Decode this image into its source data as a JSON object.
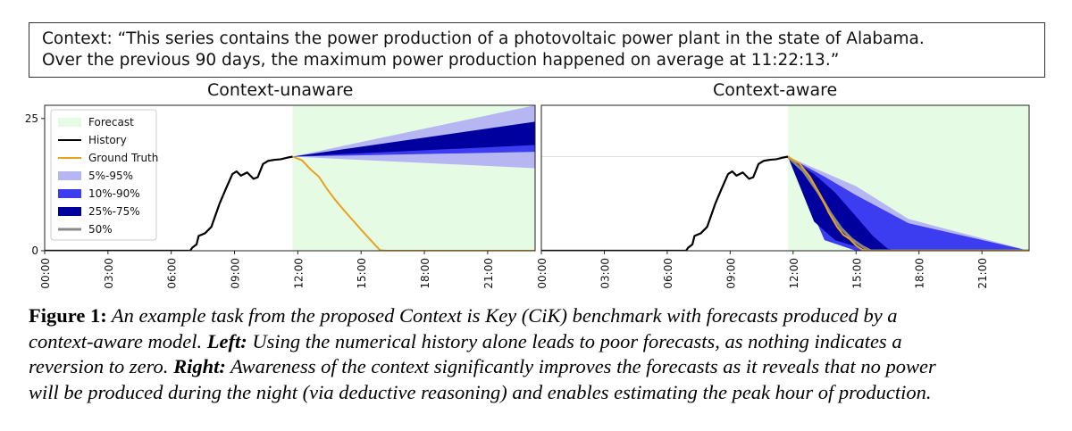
{
  "context": {
    "line1": "Context: “This series contains the power production of a photovoltaic power plant in the state of Alabama.",
    "line2": "Over the previous 90 days, the maximum power production happened on average at 11:22:13.”"
  },
  "chart_data": [
    {
      "type": "area",
      "title": "Context-unaware",
      "x_ticks": [
        "00:00",
        "03:00",
        "06:00",
        "09:00",
        "12:00",
        "15:00",
        "18:00",
        "21:00"
      ],
      "y_ticks": [
        0,
        25
      ],
      "ylim": [
        0,
        27.5
      ],
      "legend_position": "top-left",
      "legend": [
        "Forecast",
        "History",
        "Ground Truth",
        "5%-95%",
        "10%-90%",
        "25%-75%",
        "50%"
      ],
      "forecast_start_hour": 11.75,
      "x_end_hour": 23.25,
      "history": [
        [
          0,
          0
        ],
        [
          6.9,
          0
        ],
        [
          7.0,
          0.6
        ],
        [
          7.2,
          1.2
        ],
        [
          7.3,
          2.8
        ],
        [
          7.6,
          3.3
        ],
        [
          7.9,
          4.5
        ],
        [
          8.3,
          9.0
        ],
        [
          8.6,
          11.8
        ],
        [
          8.9,
          14.5
        ],
        [
          9.1,
          15.0
        ],
        [
          9.3,
          14.2
        ],
        [
          9.6,
          14.8
        ],
        [
          9.9,
          13.6
        ],
        [
          10.1,
          13.9
        ],
        [
          10.35,
          16.4
        ],
        [
          10.6,
          17.0
        ],
        [
          10.9,
          17.2
        ],
        [
          11.2,
          17.3
        ],
        [
          11.5,
          17.6
        ],
        [
          11.75,
          17.8
        ]
      ],
      "ground_truth": [
        [
          11.75,
          17.8
        ],
        [
          12.2,
          17.1
        ],
        [
          12.6,
          15.4
        ],
        [
          13.0,
          14.0
        ],
        [
          13.4,
          11.6
        ],
        [
          13.8,
          9.5
        ],
        [
          14.2,
          7.6
        ],
        [
          14.6,
          5.8
        ],
        [
          15.0,
          4.0
        ],
        [
          15.5,
          1.8
        ],
        [
          15.9,
          0.1
        ],
        [
          16.2,
          0
        ],
        [
          23.25,
          0
        ]
      ],
      "forecast_bands": {
        "end_hour": 23.25,
        "5-95": [
          15.6,
          27.5
        ],
        "10-90": [
          18.7,
          23.8
        ],
        "25-75": [
          20.0,
          24.4
        ]
      }
    },
    {
      "type": "area",
      "title": "Context-aware",
      "x_ticks": [
        "00:00",
        "03:00",
        "06:00",
        "09:00",
        "12:00",
        "15:00",
        "18:00",
        "21:00"
      ],
      "ylim": [
        0,
        27.5
      ],
      "forecast_start_hour": 11.75,
      "x_end_hour": 23.25,
      "history": [
        [
          0,
          0
        ],
        [
          6.9,
          0
        ],
        [
          7.0,
          0.6
        ],
        [
          7.2,
          1.2
        ],
        [
          7.3,
          2.8
        ],
        [
          7.6,
          3.3
        ],
        [
          7.9,
          4.5
        ],
        [
          8.3,
          9.0
        ],
        [
          8.6,
          11.8
        ],
        [
          8.9,
          14.5
        ],
        [
          9.1,
          15.0
        ],
        [
          9.3,
          14.2
        ],
        [
          9.6,
          14.8
        ],
        [
          9.9,
          13.6
        ],
        [
          10.1,
          13.9
        ],
        [
          10.35,
          16.4
        ],
        [
          10.6,
          17.0
        ],
        [
          10.9,
          17.2
        ],
        [
          11.2,
          17.3
        ],
        [
          11.5,
          17.6
        ],
        [
          11.75,
          17.8
        ]
      ],
      "ground_truth": [
        [
          11.75,
          17.8
        ],
        [
          12.3,
          16.5
        ],
        [
          12.8,
          14.0
        ],
        [
          13.3,
          10.5
        ],
        [
          13.7,
          7.2
        ],
        [
          14.1,
          4.5
        ],
        [
          14.4,
          3.0
        ],
        [
          14.7,
          2.2
        ],
        [
          15.0,
          1.0
        ],
        [
          15.3,
          0.2
        ],
        [
          15.6,
          0
        ],
        [
          23.25,
          0
        ]
      ],
      "forecast_bands": {
        "5-95": [
          [
            11.75,
            17.8,
            17.8
          ],
          [
            15.0,
            0,
            12.2
          ],
          [
            17.5,
            0,
            6.0
          ],
          [
            23.25,
            0,
            0
          ]
        ],
        "10-90": [
          [
            11.75,
            17.8,
            17.8
          ],
          [
            13.5,
            2.0,
            14.0
          ],
          [
            15.0,
            0,
            10.5
          ],
          [
            17.5,
            0,
            5.2
          ],
          [
            23.25,
            0,
            0
          ]
        ],
        "25-75": [
          [
            11.75,
            17.8,
            17.8
          ],
          [
            13.0,
            5.5,
            14.5
          ],
          [
            14.0,
            2.0,
            11.0
          ],
          [
            15.0,
            0.8,
            6.5
          ],
          [
            15.8,
            0,
            2.8
          ],
          [
            16.5,
            0,
            0.4
          ],
          [
            17.0,
            0,
            0
          ]
        ],
        "50": [
          [
            11.75,
            17.8
          ],
          [
            12.5,
            15.0
          ],
          [
            13.2,
            11.0
          ],
          [
            13.8,
            7.0
          ],
          [
            14.3,
            4.2
          ],
          [
            14.8,
            2.2
          ],
          [
            15.3,
            0.8
          ],
          [
            15.7,
            0
          ],
          [
            23.25,
            0
          ]
        ]
      }
    }
  ],
  "caption": {
    "figure_label": "Figure 1:",
    "line1_rest": " An example task from the proposed Context is Key (CiK) benchmark with forecasts produced by a",
    "line2_a": "context-aware model. ",
    "left_label": "Left:",
    "line2_b": " Using the numerical history alone leads to poor forecasts, as nothing indicates a",
    "line3_a": "reversion to zero. ",
    "right_label": "Right:",
    "line3_b": " Awareness of the context significantly improves the forecasts as it reveals that no power",
    "line4": "will be produced during the night (via deductive reasoning) and enables estimating the peak hour of production."
  },
  "colors": {
    "forecast_bg": "#e6fbe4",
    "history": "#000000",
    "ground_truth": "#e8a21e",
    "band_5_95": "#b6b6f2",
    "band_10_90": "#3c3cf0",
    "band_25_75": "#00009e",
    "median": "#888888"
  }
}
